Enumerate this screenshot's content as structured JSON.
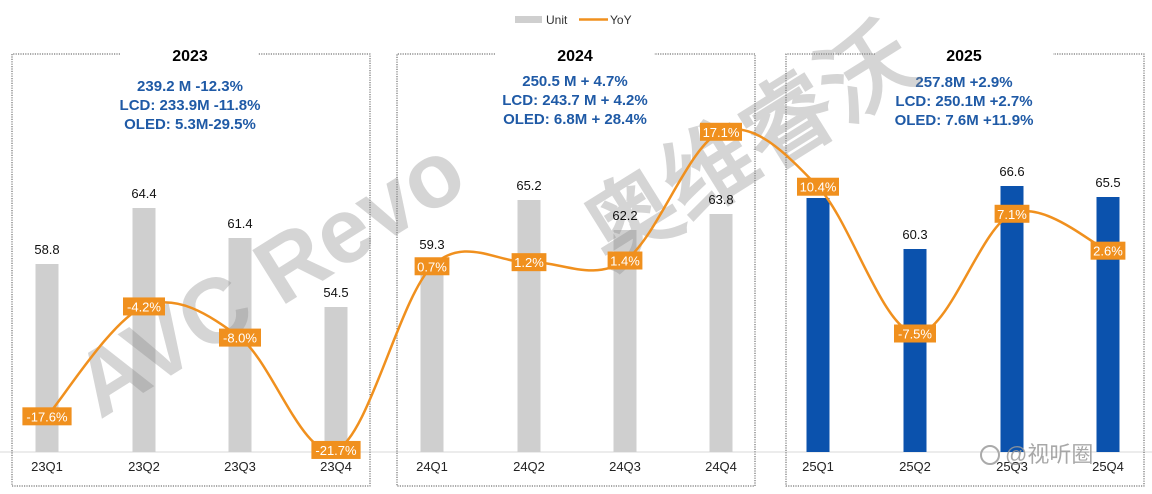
{
  "chart_data": {
    "type": "bar",
    "combo": "bar+line",
    "title": "",
    "legend": {
      "position": "top-center",
      "entries": [
        {
          "name": "Unit",
          "kind": "bar",
          "color": "#cfcfcf"
        },
        {
          "name": "YoY",
          "kind": "line",
          "color": "#f0901e"
        }
      ]
    },
    "xlabel": "",
    "ylabel": "",
    "grid": false,
    "bar_colors": {
      "2023": "#cfcfcf",
      "2024": "#cfcfcf",
      "2025": "#0b52ad"
    },
    "yoy_color": "#f0901e",
    "summary_color": "#1f5aa6",
    "categories": [
      "23Q1",
      "23Q2",
      "23Q3",
      "23Q4",
      "24Q1",
      "24Q2",
      "24Q3",
      "24Q4",
      "25Q1",
      "25Q2",
      "25Q3",
      "25Q4"
    ],
    "series": [
      {
        "name": "Unit",
        "unit": "M",
        "values": [
          58.8,
          64.4,
          61.4,
          54.5,
          59.3,
          65.2,
          62.2,
          63.8,
          65.4,
          60.3,
          66.6,
          65.5
        ],
        "labels": [
          "58.8",
          "64.4",
          "61.4",
          "54.5",
          "59.3",
          "65.2",
          "62.2",
          "63.8",
          "65.4",
          "60.3",
          "66.6",
          "65.5"
        ]
      },
      {
        "name": "YoY",
        "unit": "%",
        "values": [
          -17.6,
          -4.2,
          -8.0,
          -21.7,
          0.7,
          1.2,
          1.4,
          17.1,
          10.4,
          -7.5,
          7.1,
          2.6
        ],
        "labels": [
          "-17.6%",
          "-4.2%",
          "-8.0%",
          "-21.7%",
          "0.7%",
          "1.2%",
          "1.4%",
          "17.1%",
          "10.4%",
          "-7.5%",
          "7.1%",
          "2.6%"
        ]
      }
    ],
    "unit_ylim": [
      0,
      70
    ],
    "yoy_ylim": [
      -26,
      20
    ],
    "panels": [
      {
        "year": "2023",
        "summary": [
          "239.2 M -12.3%",
          "LCD: 233.9M -11.8%",
          "OLED: 5.3M-29.5%"
        ]
      },
      {
        "year": "2024",
        "summary": [
          "250.5 M + 4.7%",
          "LCD: 243.7 M + 4.2%",
          "OLED: 6.8M + 28.4%"
        ]
      },
      {
        "year": "2025",
        "summary": [
          "257.8M +2.9%",
          "LCD: 250.1M +2.7%",
          "OLED: 7.6M +11.9%"
        ]
      }
    ]
  },
  "watermarks": {
    "main": "AVC Revo",
    "cn": "奥维睿沃",
    "source": "@视听圈"
  }
}
